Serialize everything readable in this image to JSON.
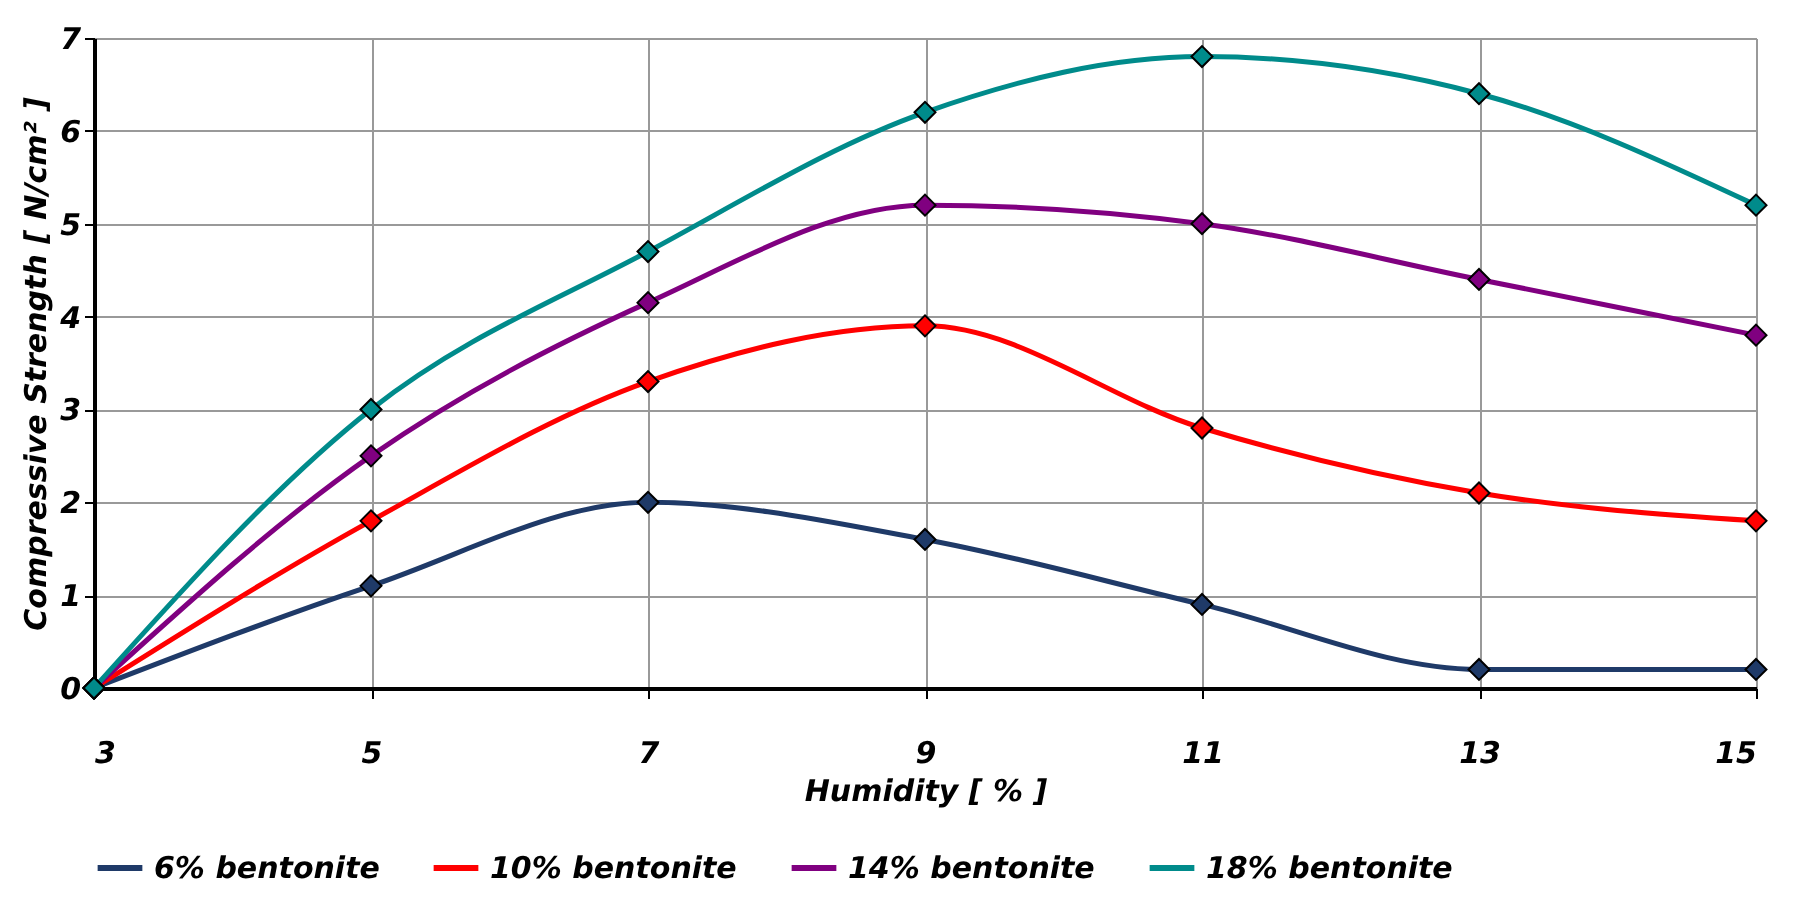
{
  "chart_data": {
    "type": "line",
    "xlabel": "Humidity [ % ]",
    "ylabel": "Compressive Strength [ N/cm² ]",
    "x": [
      3,
      5,
      7,
      9,
      11,
      13,
      15
    ],
    "xlim": [
      3,
      15
    ],
    "xticks": [
      3,
      5,
      7,
      9,
      11,
      13,
      15
    ],
    "ylim": [
      0,
      7
    ],
    "yticks": [
      0,
      1,
      2,
      3,
      4,
      5,
      6,
      7
    ],
    "grid": true,
    "legend": "bottom",
    "marker": "diamond",
    "line_style": "solid",
    "series": [
      {
        "name": "6% bentonite",
        "color": "#1f3a68",
        "values": [
          0,
          1.1,
          2.0,
          1.6,
          0.9,
          0.2,
          0.2
        ]
      },
      {
        "name": "10% bentonite",
        "color": "#ff0000",
        "values": [
          0,
          1.8,
          3.3,
          3.9,
          2.8,
          2.1,
          1.8
        ]
      },
      {
        "name": "14% bentonite",
        "color": "#800080",
        "values": [
          0,
          2.5,
          4.15,
          5.2,
          5.0,
          4.4,
          3.8
        ]
      },
      {
        "name": "18% bentonite",
        "color": "#008b8b",
        "values": [
          0,
          3.0,
          4.7,
          6.2,
          6.8,
          6.4,
          5.2
        ]
      }
    ]
  }
}
